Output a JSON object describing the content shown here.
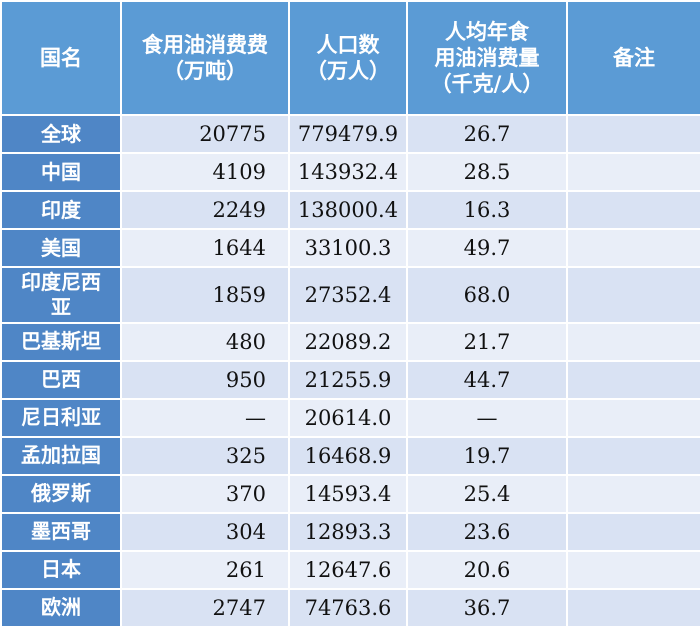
{
  "table": {
    "headers": {
      "name": "国名",
      "consumption": "食用油消费费\n（万吨）",
      "population": "人口数\n（万人）",
      "per_capita": "人均年食\n用油消费量\n（千克/人）",
      "notes": "备注"
    },
    "rows": [
      {
        "name": "全球",
        "consumption": "20775",
        "population": "779479.9",
        "per_capita": "26.7",
        "note": ""
      },
      {
        "name": "中国",
        "consumption": "4109",
        "population": "143932.4",
        "per_capita": "28.5",
        "note": ""
      },
      {
        "name": "印度",
        "consumption": "2249",
        "population": "138000.4",
        "per_capita": "16.3",
        "note": ""
      },
      {
        "name": "美国",
        "consumption": "1644",
        "population": "33100.3",
        "per_capita": "49.7",
        "note": ""
      },
      {
        "name": "印度尼西亚",
        "consumption": "1859",
        "population": "27352.4",
        "per_capita": "68.0",
        "note": ""
      },
      {
        "name": "巴基斯坦",
        "consumption": "480",
        "population": "22089.2",
        "per_capita": "21.7",
        "note": ""
      },
      {
        "name": "巴西",
        "consumption": "950",
        "population": "21255.9",
        "per_capita": "44.7",
        "note": ""
      },
      {
        "name": "尼日利亚",
        "consumption": "—",
        "population": "20614.0",
        "per_capita": "—",
        "note": ""
      },
      {
        "name": "孟加拉国",
        "consumption": "325",
        "population": "16468.9",
        "per_capita": "19.7",
        "note": ""
      },
      {
        "name": "俄罗斯",
        "consumption": "370",
        "population": "14593.4",
        "per_capita": "25.4",
        "note": ""
      },
      {
        "name": "墨西哥",
        "consumption": "304",
        "population": "12893.3",
        "per_capita": "23.6",
        "note": ""
      },
      {
        "name": "日本",
        "consumption": "261",
        "population": "12647.6",
        "per_capita": "20.6",
        "note": ""
      },
      {
        "name": "欧洲",
        "consumption": "2747",
        "population": "74763.6",
        "per_capita": "36.7",
        "note": ""
      }
    ]
  }
}
